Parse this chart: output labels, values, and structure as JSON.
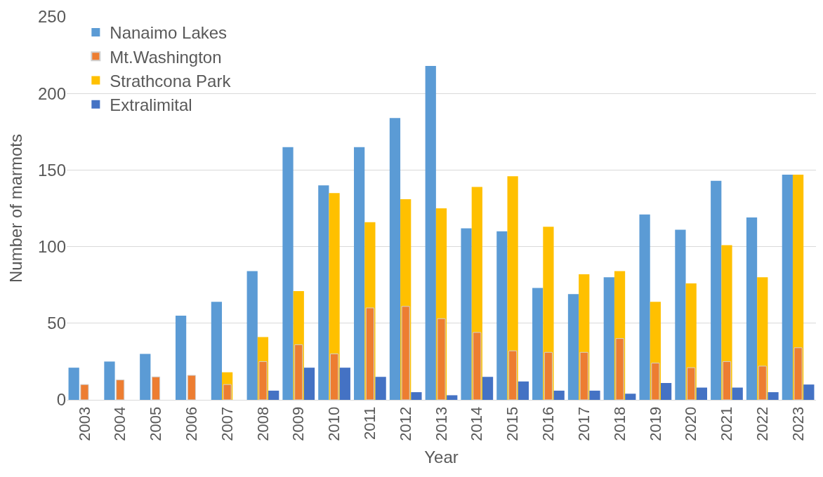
{
  "chart_data": {
    "type": "bar",
    "xlabel": "Year",
    "ylabel": "Number of marmots",
    "categories": [
      "2003",
      "2004",
      "2005",
      "2006",
      "2007",
      "2008",
      "2009",
      "2010",
      "2011",
      "2012",
      "2013",
      "2014",
      "2015",
      "2016",
      "2017",
      "2018",
      "2019",
      "2020",
      "2021",
      "2022",
      "2023"
    ],
    "series": [
      {
        "name": "Nanaimo Lakes",
        "color": "#5b9bd5",
        "values": [
          21,
          25,
          30,
          55,
          64,
          84,
          165,
          140,
          165,
          184,
          218,
          112,
          110,
          73,
          69,
          80,
          121,
          111,
          143,
          119,
          147
        ]
      },
      {
        "name": "Mt.Washington",
        "color": "#ed7d31",
        "values": [
          10,
          13,
          15,
          16,
          10,
          25,
          36,
          30,
          60,
          61,
          53,
          44,
          32,
          31,
          31,
          40,
          24,
          21,
          25,
          22,
          34
        ]
      },
      {
        "name": "Strathcona Park",
        "color": "#ffc000",
        "values": [
          null,
          null,
          null,
          null,
          18,
          41,
          71,
          135,
          116,
          131,
          125,
          139,
          146,
          113,
          82,
          84,
          64,
          76,
          101,
          80,
          147
        ]
      },
      {
        "name": "Extralimital",
        "color": "#4472c4",
        "values": [
          null,
          null,
          null,
          null,
          null,
          6,
          21,
          21,
          15,
          5,
          3,
          15,
          12,
          6,
          6,
          4,
          11,
          8,
          8,
          5,
          10
        ]
      }
    ],
    "ylim": [
      0,
      250
    ],
    "yticks": [
      0,
      50,
      100,
      150,
      200,
      250
    ],
    "grid": "y",
    "legend": "top left"
  }
}
